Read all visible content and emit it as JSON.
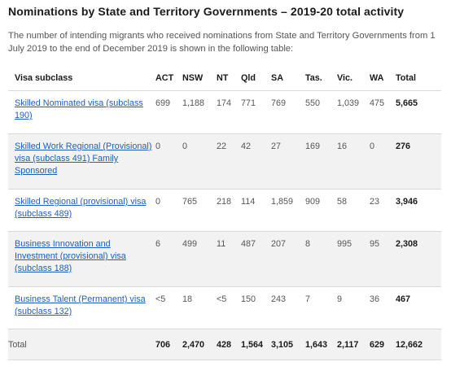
{
  "title": "Nominations by State and Territory Governments – 2019-20 total activity",
  "intro": "The number of intending migrants who received nominations from State and Territory Governments from 1 July 2019 to the end of December 2019 is shown in the following table:",
  "table": {
    "headers": [
      "Visa subclass",
      "ACT",
      "NSW",
      "NT",
      "Qld",
      "SA",
      "Tas.",
      "Vic.",
      "WA",
      "Total"
    ],
    "rows": [
      {
        "visa": "Skilled Nominated visa (subclass 190)",
        "values": [
          "699",
          "1,188",
          "174",
          "771",
          "769",
          "550",
          "1,039",
          "475"
        ],
        "total": "5,665"
      },
      {
        "visa": "Skilled Work Regional (Provisional) visa (subclass 491) Family Sponsored",
        "values": [
          "0",
          "0",
          "22",
          "42",
          "27",
          "169",
          "16",
          "0"
        ],
        "total": "276"
      },
      {
        "visa": "Skilled Regional (provisional) visa (subclass 489)",
        "values": [
          "0",
          "765",
          "218",
          "114",
          "1,859",
          "909",
          "58",
          "23"
        ],
        "total": "3,946"
      },
      {
        "visa": "Business Innovation and Investment (provisional) visa (subclass 188)",
        "values": [
          "6",
          "499",
          "11",
          "487",
          "207",
          "8",
          "995",
          "95"
        ],
        "total": "2,308"
      },
      {
        "visa": "Business Talent (Permanent) visa (subclass 132)",
        "values": [
          "<5",
          "18",
          "<5",
          "150",
          "243",
          "7",
          "9",
          "36"
        ],
        "total": "467"
      }
    ],
    "total_row": {
      "label": "Total",
      "values": [
        "706",
        "2,470",
        "428",
        "1,564",
        "3,105",
        "1,643",
        "2,117",
        "629"
      ],
      "total": "12,662"
    }
  },
  "colors": {
    "link": "#1f5fb8",
    "stripe": "#f2f2f2",
    "divider": "#d9d9d9"
  }
}
